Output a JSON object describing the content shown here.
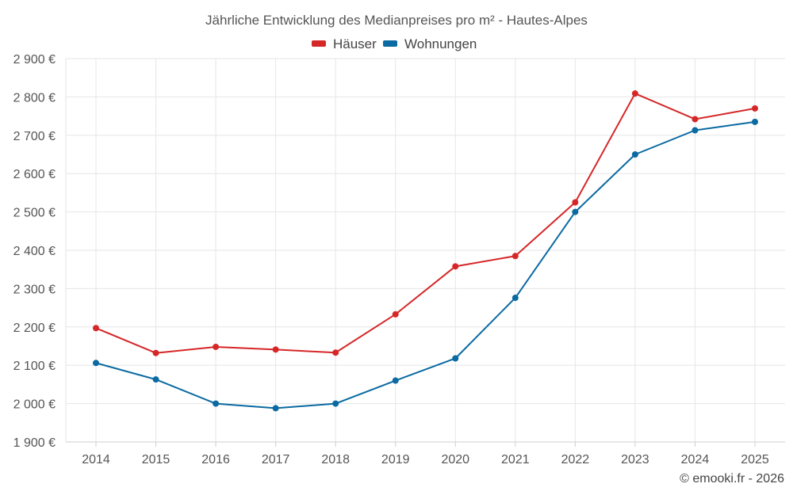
{
  "chart_data": {
    "type": "line",
    "title": "Jährliche Entwicklung des Medianpreises pro m² - Hautes-Alpes",
    "x": [
      "2014",
      "2015",
      "2016",
      "2017",
      "2018",
      "2019",
      "2020",
      "2021",
      "2022",
      "2023",
      "2024",
      "2025"
    ],
    "series": [
      {
        "name": "Häuser",
        "color": "#d62728",
        "values": [
          2197,
          2132,
          2148,
          2141,
          2133,
          2233,
          2358,
          2385,
          2525,
          2809,
          2742,
          2770
        ]
      },
      {
        "name": "Wohnungen",
        "color": "#0a6aa1",
        "values": [
          2106,
          2063,
          2000,
          1988,
          2000,
          2060,
          2118,
          2276,
          2500,
          2650,
          2713,
          2735
        ]
      }
    ],
    "ylim": [
      1900,
      2900
    ],
    "y_ticks": [
      "1 900 €",
      "2 000 €",
      "2 100 €",
      "2 200 €",
      "2 300 €",
      "2 400 €",
      "2 500 €",
      "2 600 €",
      "2 700 €",
      "2 800 €",
      "2 900 €"
    ],
    "grid": true,
    "legend_position": "top-center"
  },
  "credit": "© emooki.fr - 2026"
}
